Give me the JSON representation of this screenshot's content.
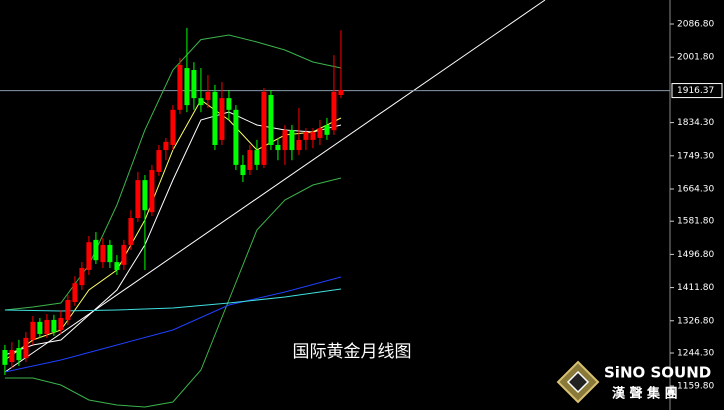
{
  "chart_data": {
    "type": "candlestick",
    "title": "国际黄金月线图",
    "open": [
      1252,
      1221,
      1257,
      1231,
      1278,
      1324,
      1293,
      1329,
      1303,
      1329,
      1375,
      1418,
      1457,
      1534,
      1477,
      1521,
      1477,
      1470,
      1521,
      1590,
      1687,
      1605,
      1708,
      1764,
      1777,
      1867,
      1974,
      1969,
      1897,
      1892,
      1913,
      1790,
      1897,
      1867,
      1726,
      1713,
      1764,
      1726,
      1905,
      1777,
      1764,
      1815,
      1764,
      1790,
      1790,
      1795,
      1828,
      1815,
      1905
    ],
    "high": [
      1265,
      1272,
      1278,
      1298,
      1339,
      1334,
      1344,
      1342,
      1354,
      1393,
      1441,
      1477,
      1544,
      1554,
      1539,
      1534,
      1495,
      1534,
      1610,
      1708,
      1700,
      1726,
      1777,
      1795,
      1879,
      2000,
      2077,
      1989,
      1974,
      1956,
      1931,
      1938,
      1918,
      1879,
      1751,
      1777,
      1790,
      1923,
      1918,
      1795,
      1828,
      1828,
      1872,
      1820,
      1820,
      1841,
      1846,
      2007,
      2071
    ],
    "low": [
      1188,
      1206,
      1211,
      1221,
      1265,
      1283,
      1283,
      1288,
      1293,
      1316,
      1365,
      1406,
      1444,
      1472,
      1462,
      1462,
      1444,
      1457,
      1508,
      1580,
      1457,
      1595,
      1698,
      1738,
      1764,
      1856,
      1861,
      1867,
      1861,
      1872,
      1764,
      1777,
      1841,
      1713,
      1682,
      1700,
      1713,
      1718,
      1764,
      1738,
      1726,
      1738,
      1751,
      1764,
      1769,
      1777,
      1790,
      1803,
      1897
    ],
    "close": [
      1214,
      1252,
      1226,
      1283,
      1324,
      1293,
      1329,
      1298,
      1334,
      1380,
      1423,
      1462,
      1528,
      1482,
      1521,
      1477,
      1457,
      1521,
      1590,
      1687,
      1610,
      1713,
      1764,
      1785,
      1867,
      1982,
      1879,
      1897,
      1879,
      1913,
      1777,
      1897,
      1867,
      1726,
      1700,
      1764,
      1726,
      1913,
      1777,
      1764,
      1815,
      1764,
      1790,
      1810,
      1810,
      1820,
      1803,
      1913,
      1918
    ],
    "up_color": "#ff0000",
    "down_color": "#00ff00",
    "series": [
      {
        "color": "#3cb44b",
        "x": [
          0,
          4,
          8,
          12,
          16,
          20,
          24,
          28,
          32,
          36,
          40,
          44,
          48
        ],
        "values": [
          1354.4,
          1362.0,
          1372.3,
          1469.6,
          1623.3,
          1815.3,
          1969.0,
          2046.8,
          2058.6,
          2040.7,
          2020.2,
          1989.5,
          1974.1
        ]
      },
      {
        "color": "#3cb44b",
        "x": [
          0,
          4,
          8,
          12,
          16,
          20,
          24,
          28,
          32,
          36,
          40,
          44,
          48
        ],
        "values": [
          1180.2,
          1180.2,
          1162.3,
          1123.9,
          1111.1,
          1106.0,
          1118.8,
          1200.7,
          1380.0,
          1559.2,
          1636.1,
          1674.5,
          1692.4
        ]
      },
      {
        "color": "#ffffff",
        "x": [
          0,
          4,
          8,
          12,
          16,
          20,
          24,
          28,
          32,
          36,
          40,
          44,
          48
        ],
        "values": [
          1239.1,
          1264.7,
          1277.5,
          1341.6,
          1405.6,
          1521.0,
          1687.3,
          1840.9,
          1861.4,
          1828.2,
          1815.3,
          1810.2,
          1828.2
        ]
      },
      {
        "color": "#ffff66",
        "x": [
          0,
          4,
          8,
          12,
          16,
          20,
          24,
          28,
          32,
          36,
          40,
          44,
          48
        ],
        "values": [
          1226.3,
          1277.5,
          1303.2,
          1405.6,
          1456.8,
          1584.8,
          1764.1,
          1892.2,
          1840.9,
          1764.1,
          1802.6,
          1810.2,
          1846.1
        ]
      },
      {
        "color": "#2040ff",
        "x": [
          0,
          8,
          16,
          24,
          32,
          40,
          48
        ],
        "values": [
          1195.6,
          1226.3,
          1264.7,
          1303.2,
          1367.2,
          1400.5,
          1438.9
        ]
      },
      {
        "color": "#40e0e0",
        "x": [
          0,
          8,
          16,
          24,
          32,
          40,
          48
        ],
        "values": [
          1354.4,
          1351.8,
          1354.4,
          1359.5,
          1372.3,
          1387.6,
          1408.1
        ]
      }
    ],
    "xlim": [
      -0.7,
      95
    ],
    "ylim": [
      1098.3,
      2148.3
    ],
    "yticks": [
      {
        "value": 2086.8,
        "label": "2086.80"
      },
      {
        "value": 2001.8,
        "label": "2001.80"
      },
      {
        "value": 1834.3,
        "label": "1834.30"
      },
      {
        "value": 1749.3,
        "label": "1749.30"
      },
      {
        "value": 1664.3,
        "label": "1664.30"
      },
      {
        "value": 1581.8,
        "label": "1581.80"
      },
      {
        "value": 1496.8,
        "label": "1496.80"
      },
      {
        "value": 1411.8,
        "label": "1411.80"
      },
      {
        "value": 1326.8,
        "label": "1326.80"
      },
      {
        "value": 1244.3,
        "label": "1244.30"
      },
      {
        "value": 1159.8,
        "label": "1159.80"
      }
    ],
    "last_price": {
      "value": 1916.37,
      "label": "1916.37"
    }
  },
  "logo": {
    "name": "SiNO SOUND",
    "subtitle": "漢 聲 集 團"
  }
}
